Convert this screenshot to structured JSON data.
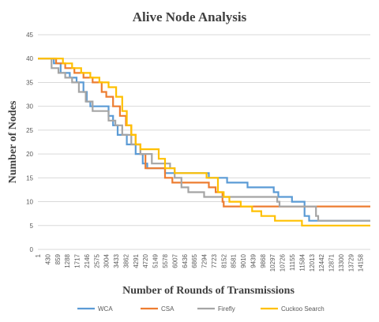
{
  "chart_data": {
    "type": "line",
    "title": "Alive  Node Analysis",
    "xlabel": "Number of Rounds of Transmissions",
    "ylabel": "Number of Nodes",
    "ylim": [
      0,
      45
    ],
    "ytick_step": 5,
    "xlim": [
      1,
      14585
    ],
    "x_tick_labels": [
      "1",
      "430",
      "859",
      "1288",
      "1717",
      "2146",
      "2575",
      "3004",
      "3433",
      "3862",
      "4291",
      "4720",
      "5149",
      "5578",
      "6007",
      "6436",
      "6865",
      "7294",
      "7723",
      "8152",
      "8581",
      "9010",
      "9439",
      "9868",
      "10297",
      "10726",
      "11155",
      "11584",
      "12013",
      "12442",
      "12871",
      "13300",
      "13729",
      "14158"
    ],
    "grid": "horizontal",
    "legend_position": "bottom",
    "series": [
      {
        "name": "WCA",
        "color": "#5b9bd5",
        "x": [
          1,
          430,
          700,
          1000,
          1400,
          1700,
          2000,
          2146,
          2300,
          2600,
          3100,
          3300,
          3500,
          3900,
          4291,
          4600,
          4800,
          5100,
          5578,
          6100,
          7500,
          8300,
          9200,
          10350,
          10550,
          11150,
          11700,
          11900,
          12013,
          12300,
          14585
        ],
        "y": [
          40,
          40,
          39,
          37,
          36,
          35,
          33,
          31,
          30,
          30,
          28,
          26,
          24,
          22,
          20,
          18,
          17,
          17,
          16,
          16,
          15,
          14,
          13,
          12,
          11,
          10,
          7,
          6,
          6,
          6,
          6
        ]
      },
      {
        "name": "CSA",
        "color": "#ed7d31",
        "x": [
          1,
          430,
          800,
          1200,
          1600,
          2000,
          2400,
          2800,
          3000,
          3300,
          3600,
          3862,
          4100,
          4291,
          4500,
          4720,
          5100,
          5578,
          5900,
          6436,
          7000,
          7500,
          7800,
          8100,
          8152,
          8400,
          9000,
          11000,
          12013,
          14585
        ],
        "y": [
          40,
          40,
          39,
          38,
          37,
          36,
          35,
          33,
          32,
          30,
          28,
          26,
          24,
          22,
          20,
          17,
          17,
          15,
          14,
          14,
          14,
          13,
          12,
          10,
          9,
          9,
          9,
          9,
          9,
          9
        ]
      },
      {
        "name": "Firefly",
        "color": "#a5a5a5",
        "x": [
          1,
          300,
          600,
          900,
          1200,
          1500,
          1800,
          2100,
          2400,
          2900,
          3100,
          3400,
          3700,
          4100,
          4291,
          4500,
          5000,
          5300,
          5800,
          6000,
          6300,
          6600,
          7294,
          8000,
          9000,
          10200,
          10500,
          10600,
          12013,
          12200,
          12300,
          14585
        ],
        "y": [
          40,
          40,
          38,
          37,
          36,
          35,
          33,
          31,
          29,
          29,
          27,
          26,
          24,
          22,
          22,
          20,
          18,
          18,
          17,
          15,
          13,
          12,
          11,
          11,
          11,
          11,
          10,
          9,
          9,
          7,
          6,
          6
        ]
      },
      {
        "name": "Cuckoo Search",
        "color": "#ffc000",
        "x": [
          1,
          700,
          1100,
          1500,
          1900,
          2300,
          2700,
          3100,
          3433,
          3700,
          3900,
          4100,
          4291,
          4500,
          5000,
          5300,
          5578,
          6000,
          6436,
          7000,
          7400,
          7900,
          8152,
          8400,
          8900,
          9400,
          9800,
          10400,
          11584,
          12013,
          14585
        ],
        "y": [
          40,
          40,
          39,
          38,
          37,
          36,
          35,
          34,
          32,
          29,
          26,
          24,
          22,
          21,
          21,
          19,
          17,
          16,
          16,
          16,
          15,
          12,
          11,
          10,
          9,
          8,
          7,
          6,
          5,
          5,
          5
        ]
      }
    ]
  }
}
